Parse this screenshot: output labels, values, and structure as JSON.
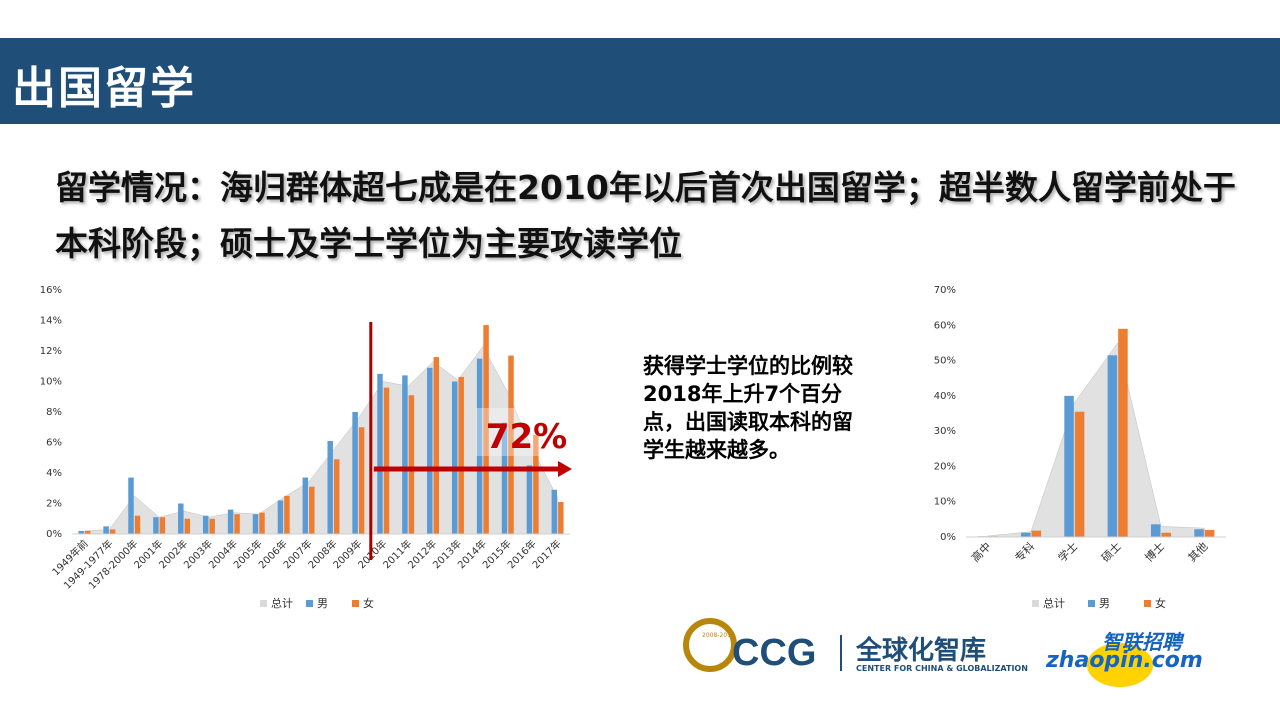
{
  "banner": {
    "title": "出国留学"
  },
  "subtitle": "留学情况：海归群体超七成是在2010年以后首次出国留学；超半数人留学前处于本科阶段；硕士及学士学位为主要攻读学位",
  "annotation": "获得学士学位的比例较2018年上升7个百分点，出国读取本科的留学生越来越多。",
  "highlight": {
    "label": "72%",
    "color": "#c00000"
  },
  "colors": {
    "banner": "#1f4e79",
    "total": "#d9d9d9",
    "male": "#5b9bd5",
    "female": "#ed7d31"
  },
  "chart_data": [
    {
      "type": "bar",
      "title": "",
      "xlabel": "",
      "ylabel": "",
      "ylim": [
        0,
        16
      ],
      "yticks": [
        "0%",
        "2%",
        "4%",
        "6%",
        "8%",
        "10%",
        "12%",
        "14%",
        "16%"
      ],
      "categories": [
        "1949年前",
        "1949-1977年",
        "1978-2000年",
        "2001年",
        "2002年",
        "2003年",
        "2004年",
        "2005年",
        "2006年",
        "2007年",
        "2008年",
        "2009年",
        "2010年",
        "2011年",
        "2012年",
        "2013年",
        "2014年",
        "2015年",
        "2016年",
        "2017年"
      ],
      "series": [
        {
          "name": "总计",
          "kind": "area",
          "values": [
            0.2,
            0.3,
            2.5,
            1.1,
            1.5,
            1.1,
            1.4,
            1.3,
            2.4,
            3.4,
            5.5,
            7.6,
            10.0,
            9.7,
            11.3,
            10.1,
            12.3,
            9.3,
            5.5,
            2.4
          ]
        },
        {
          "name": "男",
          "values": [
            0.2,
            0.5,
            3.7,
            1.1,
            2.0,
            1.2,
            1.6,
            1.3,
            2.2,
            3.7,
            6.1,
            8.0,
            10.5,
            10.4,
            10.9,
            10.0,
            11.5,
            7.3,
            4.5,
            2.9
          ]
        },
        {
          "name": "女",
          "values": [
            0.2,
            0.3,
            1.2,
            1.1,
            1.0,
            1.0,
            1.3,
            1.4,
            2.5,
            3.1,
            4.9,
            7.0,
            9.6,
            9.1,
            11.6,
            10.3,
            13.7,
            11.7,
            6.5,
            2.1
          ]
        }
      ],
      "legend": "bottom"
    },
    {
      "type": "bar",
      "title": "",
      "xlabel": "",
      "ylabel": "",
      "ylim": [
        0,
        70
      ],
      "yticks": [
        "0%",
        "10%",
        "20%",
        "30%",
        "40%",
        "50%",
        "60%",
        "70%"
      ],
      "categories": [
        "高中",
        "专科",
        "学士",
        "硕士",
        "博士",
        "其他"
      ],
      "series": [
        {
          "name": "总计",
          "kind": "area",
          "values": [
            0.3,
            1.5,
            38,
            55,
            3,
            2.5
          ]
        },
        {
          "name": "男",
          "values": [
            0.2,
            1.2,
            40,
            51.5,
            3.6,
            2.2
          ]
        },
        {
          "name": "女",
          "values": [
            0.2,
            1.8,
            35.5,
            59,
            1.2,
            2.0
          ]
        }
      ],
      "legend": "bottom"
    }
  ],
  "logos": {
    "ccg": "CCG",
    "ccg_cn": "全球化智库",
    "ccg_en": "CENTER FOR CHINA & GLOBALIZATION",
    "ccg_years": "2008-2018",
    "zhaopin_cn": "智联招聘",
    "zhaopin_en": "zhaopin.com"
  }
}
